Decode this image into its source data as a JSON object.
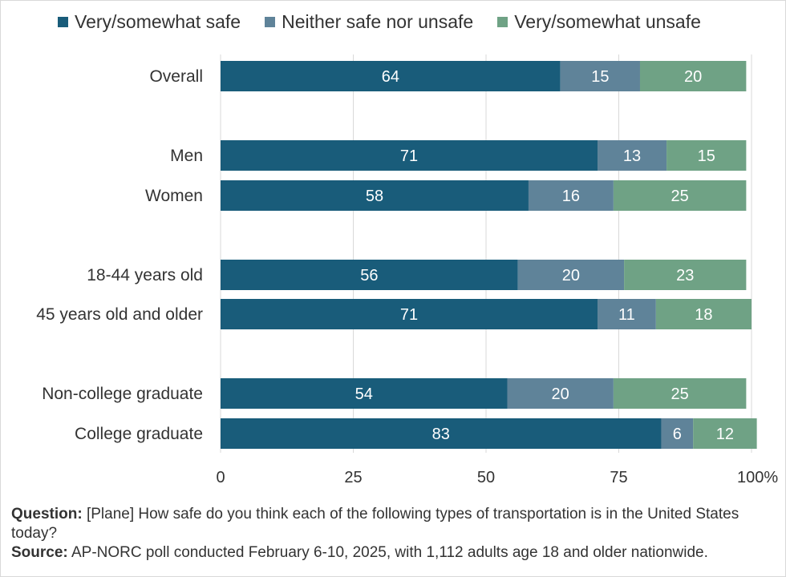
{
  "chart_data": {
    "type": "bar",
    "orientation": "horizontal",
    "stacked": true,
    "categories": [
      "Overall",
      "Men",
      "Women",
      "18-44 years old",
      "45 years old and older",
      "Non-college graduate",
      "College graduate"
    ],
    "groups": [
      [
        0
      ],
      [
        1,
        2
      ],
      [
        3,
        4
      ],
      [
        5,
        6
      ]
    ],
    "series": [
      {
        "name": "Very/somewhat safe",
        "color": "#195c7a",
        "values": [
          64,
          71,
          58,
          56,
          71,
          54,
          83
        ]
      },
      {
        "name": "Neither safe nor unsafe",
        "color": "#5f8399",
        "values": [
          15,
          13,
          16,
          20,
          11,
          20,
          6
        ]
      },
      {
        "name": "Very/somewhat unsafe",
        "color": "#6fa285",
        "values": [
          20,
          15,
          25,
          23,
          18,
          25,
          12
        ]
      }
    ],
    "xlim": [
      0,
      100
    ],
    "xticks": [
      "0",
      "25",
      "50",
      "75",
      "100%"
    ],
    "xtick_values": [
      0,
      25,
      50,
      75,
      100
    ],
    "grid": true,
    "legend": "top"
  },
  "footnote": {
    "question_label": "Question:",
    "question_text": " [Plane] How safe do you think each of the following types of transportation is in the United States today?",
    "source_label": "Source:",
    "source_text": " AP-NORC poll conducted February 6-10, 2025, with 1,112 adults age 18 and older nationwide."
  }
}
